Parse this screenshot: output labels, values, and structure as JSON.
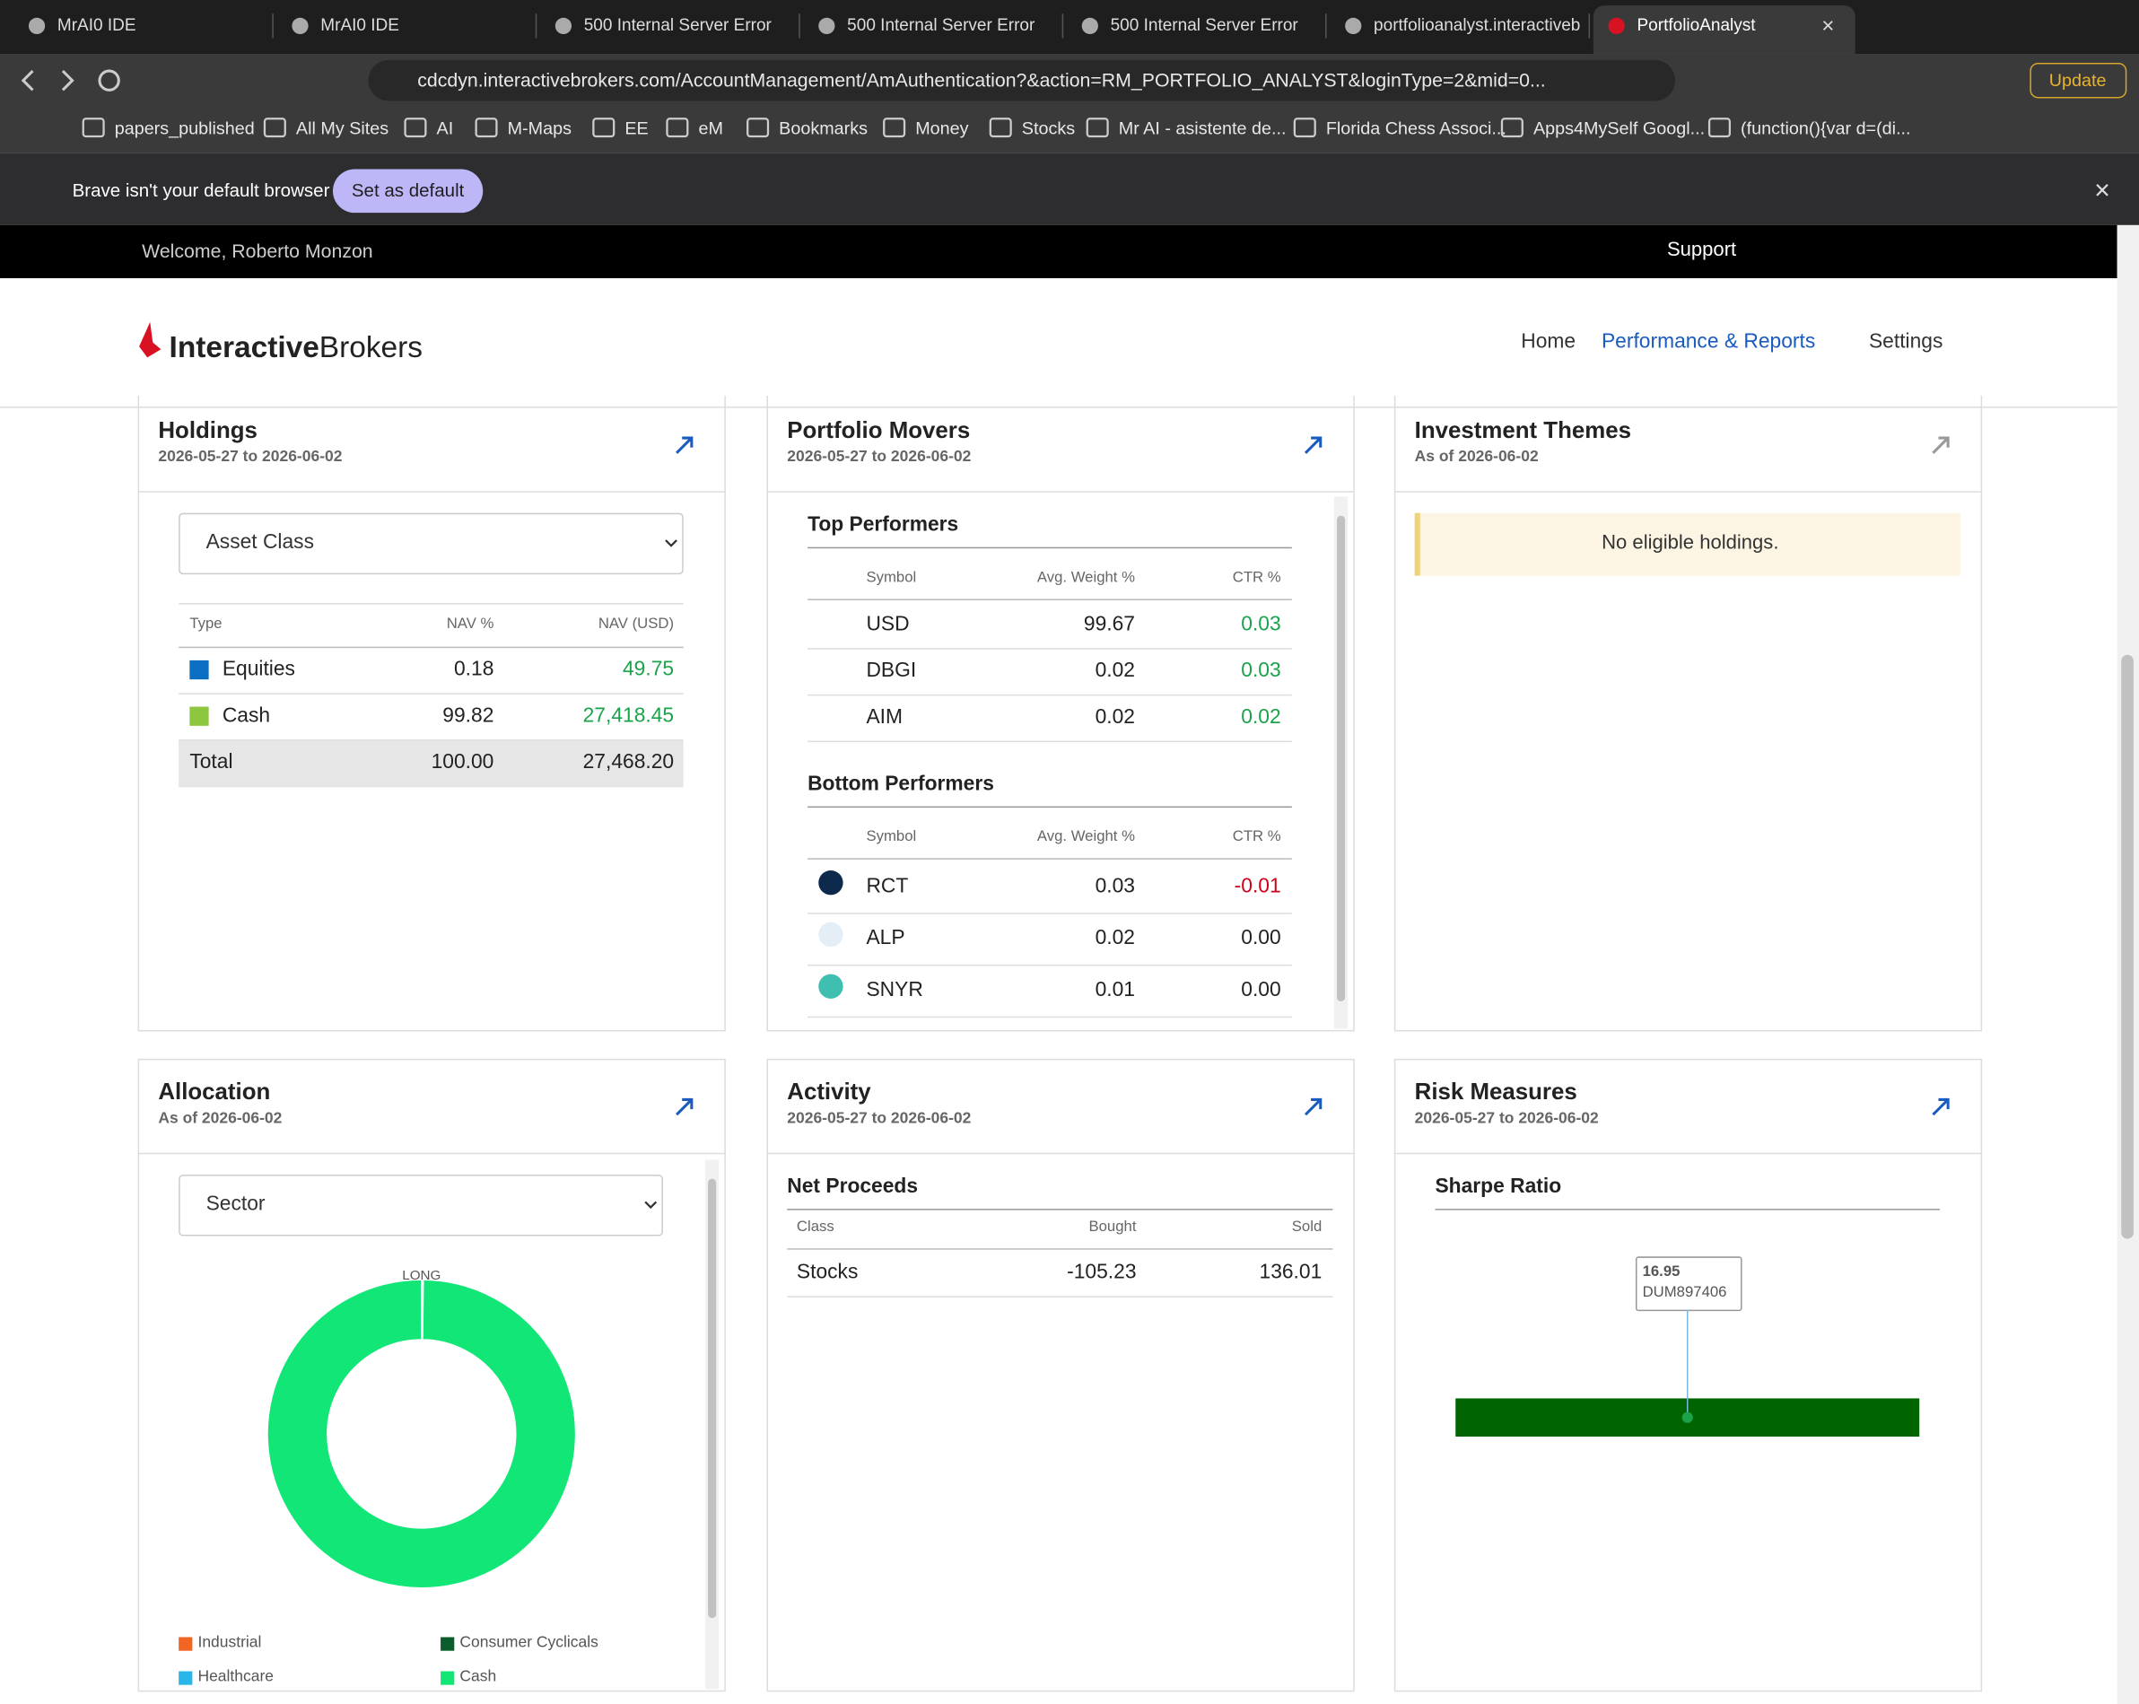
{
  "browser": {
    "tabs": [
      "MrAI0 IDE",
      "MrAI0 IDE",
      "500 Internal Server Error",
      "500 Internal Server Error",
      "500 Internal Server Error",
      "portfolioanalyst.interactiveb",
      "PortfolioAnalyst"
    ],
    "url": "cdcdyn.interactivebrokers.com/AccountManagement/AmAuthentication?&action=RM_PORTFOLIO_ANALYST&loginType=2&mid=0...",
    "update_button": "Update",
    "bookmarks": [
      "papers_published",
      "All My Sites",
      "AI",
      "M-Maps",
      "EE",
      "eM",
      "Bookmarks",
      "Money",
      "Stocks",
      "Mr AI - asistente de...",
      "Florida Chess Associ...",
      "Apps4MySelf Googl...",
      "(function(){var d=(di..."
    ],
    "banner": {
      "message": "Brave isn't your default browser",
      "button": "Set as default"
    }
  },
  "site": {
    "welcome": "Welcome, Roberto Monzon",
    "support": "Support",
    "logo_bold": "Interactive",
    "logo_light": "Brokers",
    "nav": [
      "Home",
      "Performance & Reports",
      "Settings"
    ]
  },
  "holdings": {
    "title": "Holdings",
    "date_range": "2026-05-27 to 2026-06-02",
    "select": "Asset Class",
    "columns": [
      "Type",
      "NAV %",
      "NAV (USD)"
    ],
    "rows": [
      [
        "Equities",
        "0.18",
        "49.75"
      ],
      [
        "Cash",
        "99.82",
        "27,418.45"
      ],
      [
        "Total",
        "100.00",
        "27,468.20"
      ]
    ]
  },
  "movers": {
    "title": "Portfolio Movers",
    "date_range": "2026-05-27 to 2026-06-02",
    "top": {
      "heading": "Top Performers",
      "columns": [
        "Symbol",
        "Avg. Weight %",
        "CTR %"
      ],
      "rows": [
        [
          "USD",
          "99.67",
          "0.03"
        ],
        [
          "DBGI",
          "0.02",
          "0.03"
        ],
        [
          "AIM",
          "0.02",
          "0.02"
        ]
      ]
    },
    "bottom": {
      "heading": "Bottom Performers",
      "columns": [
        "Symbol",
        "Avg. Weight %",
        "CTR %"
      ],
      "rows": [
        [
          "RCT",
          "0.03",
          "-0.01"
        ],
        [
          "ALP",
          "0.02",
          "0.00"
        ],
        [
          "SNYR",
          "0.01",
          "0.00"
        ]
      ]
    }
  },
  "themes": {
    "title": "Investment Themes",
    "as_of": "As of 2026-06-02",
    "message": "No eligible holdings."
  },
  "allocation": {
    "title": "Allocation",
    "as_of": "As of 2026-06-02",
    "select": "Sector",
    "chart_data": {
      "type": "donut",
      "label": "LONG",
      "categories": [
        "Industrial",
        "Consumer Cyclicals",
        "Healthcare",
        "Cash"
      ],
      "values": [
        0.06,
        0.06,
        0.06,
        99.82
      ],
      "colors": [
        "#f26522",
        "#0b5e2c",
        "#29b6e8",
        "#12e677"
      ]
    }
  },
  "activity": {
    "title": "Activity",
    "date_range": "2026-05-27 to 2026-06-02",
    "section": "Net Proceeds",
    "columns": [
      "Class",
      "Bought",
      "Sold"
    ],
    "rows": [
      [
        "Stocks",
        "-105.23",
        "136.01"
      ]
    ]
  },
  "risk": {
    "title": "Risk Measures",
    "date_range": "2026-05-27 to 2026-06-02",
    "section": "Sharpe Ratio",
    "chart_data": {
      "type": "bar",
      "values": [
        16.95
      ],
      "categories": [
        "DUM897406"
      ],
      "color": "#006400"
    }
  }
}
